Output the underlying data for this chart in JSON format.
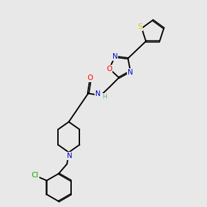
{
  "background_color": "#e8e8e8",
  "fig_width": 3.0,
  "fig_height": 3.0,
  "dpi": 100,
  "atom_colors": {
    "C": "#000000",
    "N": "#0000cc",
    "O": "#ff0000",
    "S": "#cccc00",
    "Cl": "#00aa00",
    "H": "#66aaaa"
  },
  "bond_color": "#000000",
  "bond_lw": 1.4,
  "font_size": 7.5
}
